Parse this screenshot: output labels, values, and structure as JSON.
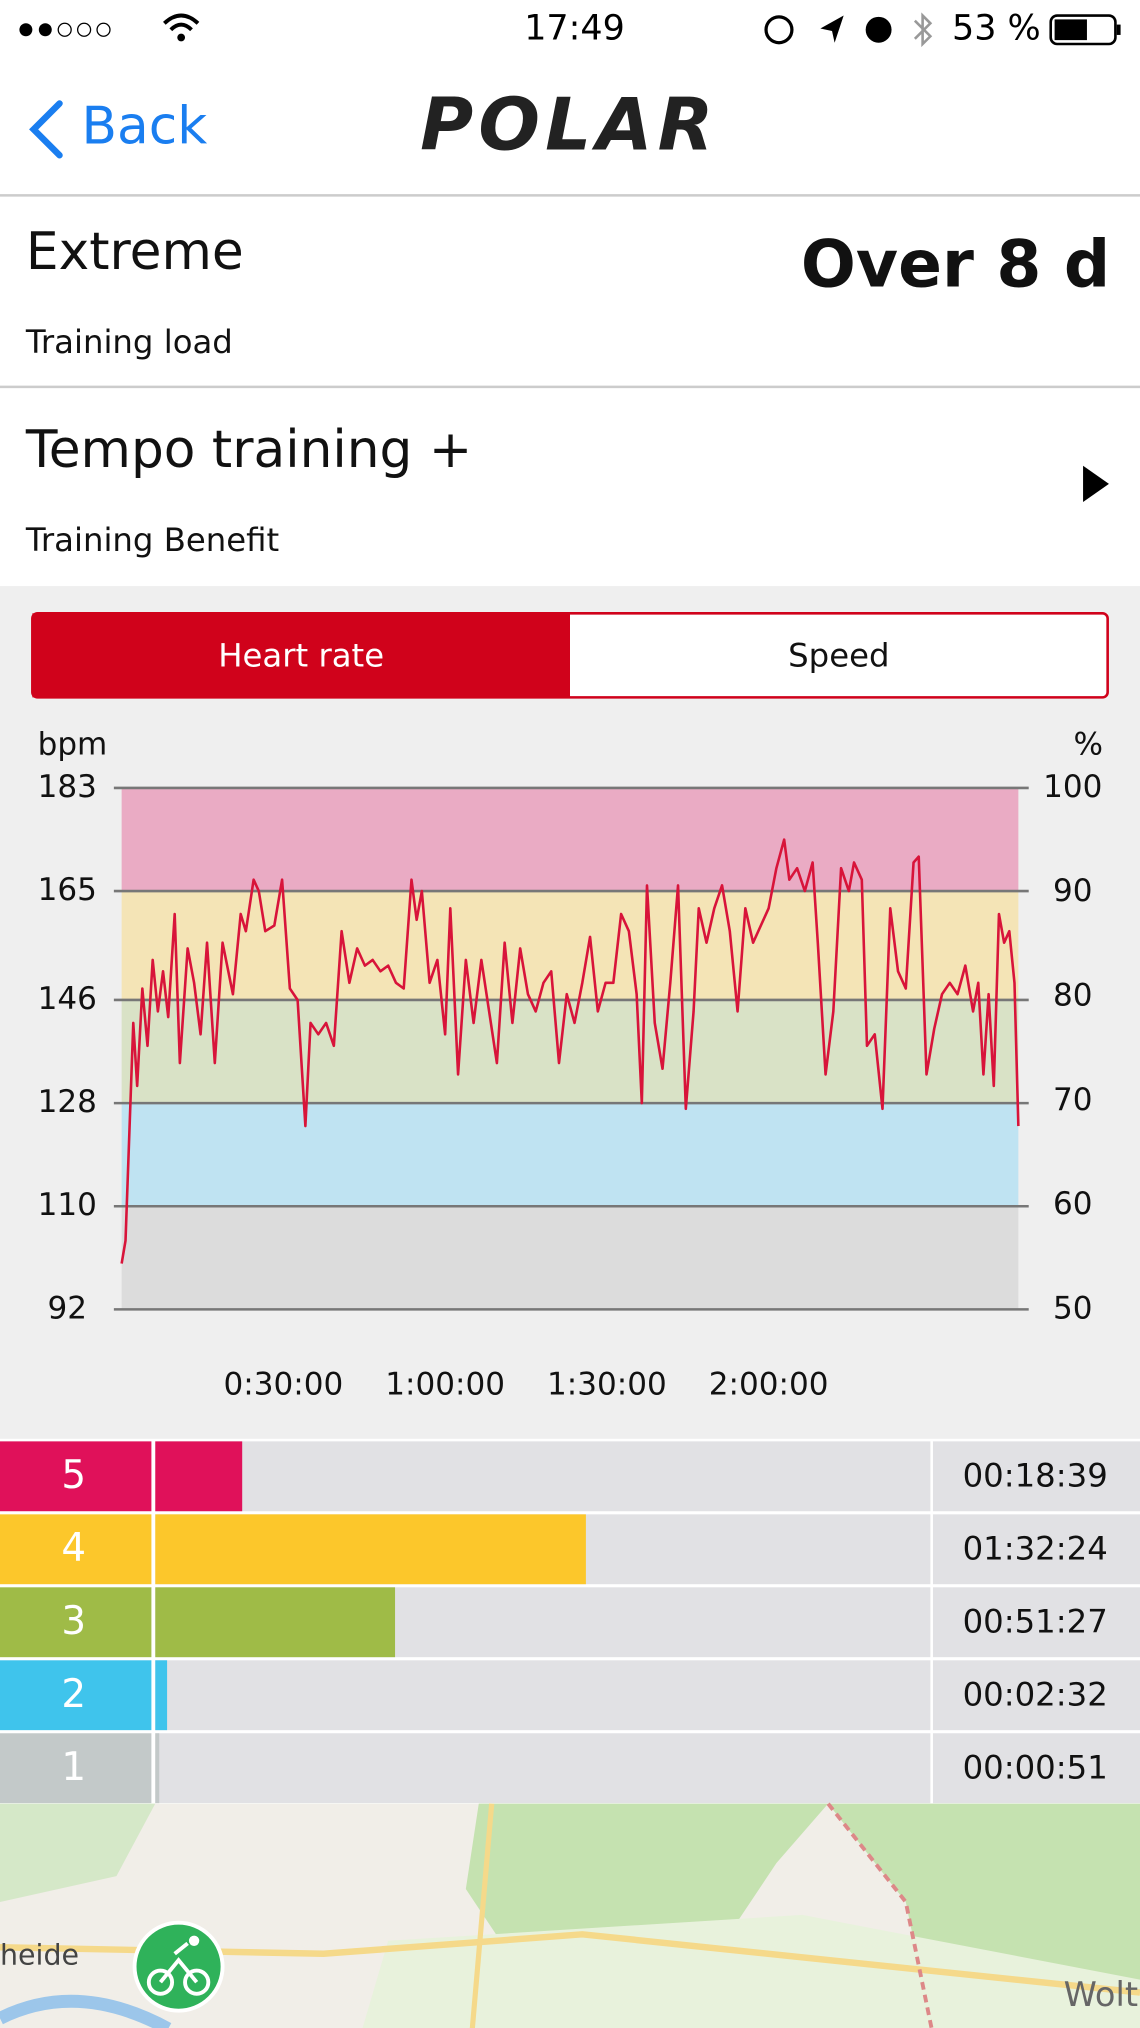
{
  "status_bar": {
    "time": "17:49",
    "battery": "53 %"
  },
  "nav": {
    "back": "Back",
    "logo": "POLAR"
  },
  "training_load": {
    "value": "Extreme",
    "label": "Training load",
    "recovery": "Over 8 d"
  },
  "training_benefit": {
    "value": "Tempo training +",
    "label": "Training Benefit"
  },
  "tabs": [
    "Heart rate",
    "Speed"
  ],
  "active_tab": 0,
  "chart_data": {
    "type": "line",
    "y_label": "bpm",
    "y2_label": "%",
    "color": "#d8143a",
    "x": [
      0,
      43,
      130,
      173,
      230,
      288,
      346,
      403,
      461,
      518,
      590,
      648,
      734,
      806,
      878,
      950,
      1037,
      1123,
      1238,
      1325,
      1382,
      1469,
      1526,
      1598,
      1699,
      1786,
      1872,
      1958,
      2045,
      2102,
      2189,
      2275,
      2362,
      2448,
      2534,
      2621,
      2707,
      2794,
      2880,
      2966,
      3053,
      3139,
      3226,
      3283,
      3341,
      3427,
      3514,
      3600,
      3658,
      3744,
      3830,
      3917,
      4003,
      4090,
      4176,
      4262,
      4349,
      4435,
      4522,
      4608,
      4694,
      4781,
      4867,
      4954,
      5040,
      5126,
      5213,
      5299,
      5386,
      5472,
      5558,
      5645,
      5731,
      5789,
      5846,
      5933,
      6019,
      6106,
      6192,
      6278,
      6365,
      6422,
      6509,
      6595,
      6682,
      6768,
      6854,
      6941,
      7027,
      7114,
      7200,
      7286,
      7373,
      7430,
      7517,
      7603,
      7690,
      7747,
      7834,
      7920,
      8006,
      8093,
      8150,
      8237,
      8294,
      8381,
      8467,
      8554,
      8640,
      8726,
      8813,
      8870,
      8957,
      9043,
      9130,
      9216,
      9302,
      9389,
      9475,
      9533,
      9590,
      9648,
      9706,
      9763,
      9821,
      9878,
      9936,
      9979
    ],
    "values": [
      100,
      104,
      142,
      131,
      148,
      138,
      153,
      144,
      151,
      143,
      161,
      135,
      155,
      149,
      140,
      156,
      135,
      156,
      147,
      161,
      158,
      167,
      165,
      158,
      159,
      167,
      148,
      146,
      124,
      142,
      140,
      142,
      138,
      158,
      149,
      155,
      152,
      153,
      151,
      152,
      149,
      148,
      167,
      160,
      165,
      149,
      153,
      140,
      162,
      133,
      153,
      142,
      153,
      144,
      135,
      156,
      142,
      155,
      147,
      144,
      149,
      151,
      135,
      147,
      142,
      149,
      157,
      144,
      149,
      149,
      161,
      158,
      147,
      128,
      166,
      142,
      134,
      149,
      166,
      127,
      144,
      162,
      156,
      162,
      166,
      158,
      144,
      162,
      156,
      159,
      162,
      169,
      174,
      167,
      169,
      165,
      170,
      156,
      133,
      144,
      169,
      165,
      170,
      167,
      138,
      140,
      127,
      162,
      151,
      148,
      170,
      171,
      133,
      141,
      147,
      149,
      147,
      152,
      144,
      149,
      133,
      147,
      131,
      161,
      156,
      158,
      149,
      124
    ],
    "xlim": [
      0,
      9979
    ],
    "xticks": [
      {
        "value": 1800,
        "label": "0:30:00"
      },
      {
        "value": 3600,
        "label": "1:00:00"
      },
      {
        "value": 5400,
        "label": "1:30:00"
      },
      {
        "value": 7200,
        "label": "2:00:00"
      }
    ],
    "ylim": [
      92,
      183
    ],
    "yticks": [
      92,
      110,
      128,
      146,
      165,
      183
    ],
    "y2lim": [
      50,
      100
    ],
    "y2ticks": [
      50,
      60,
      70,
      80,
      90,
      100
    ],
    "zone_colors": [
      "#dcdcdc",
      "#bfe3f2",
      "#d9e2c6",
      "#f4e4b6",
      "#eaabc4"
    ]
  },
  "zones": {
    "labels": [
      "5",
      "4",
      "3",
      "2",
      "1"
    ],
    "values": [
      1119,
      5544,
      3087,
      152,
      51
    ],
    "value_labels": [
      "00:18:39",
      "01:32:24",
      "00:51:27",
      "00:02:32",
      "00:00:51"
    ],
    "colors": [
      "#e0115a",
      "#fcc72b",
      "#9fbb47",
      "#3fc4ec",
      "#c3c9c9"
    ],
    "xlim": [
      0,
      9979
    ]
  },
  "map": {
    "labels": [
      "heide",
      "Wolt"
    ]
  }
}
